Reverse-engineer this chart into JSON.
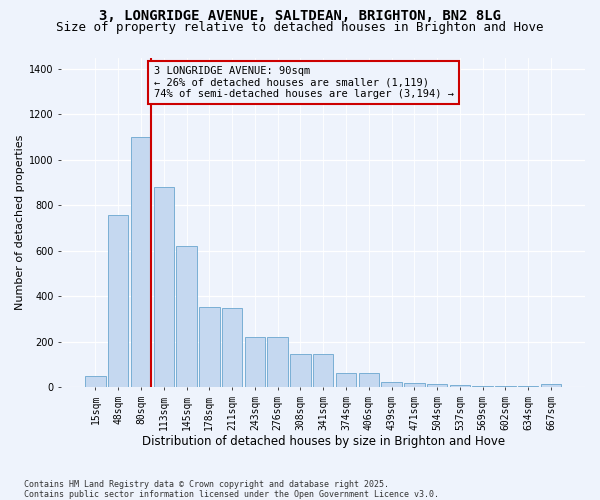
{
  "title": "3, LONGRIDGE AVENUE, SALTDEAN, BRIGHTON, BN2 8LG",
  "subtitle": "Size of property relative to detached houses in Brighton and Hove",
  "xlabel": "Distribution of detached houses by size in Brighton and Hove",
  "ylabel": "Number of detached properties",
  "categories": [
    "15sqm",
    "48sqm",
    "80sqm",
    "113sqm",
    "145sqm",
    "178sqm",
    "211sqm",
    "243sqm",
    "276sqm",
    "308sqm",
    "341sqm",
    "374sqm",
    "406sqm",
    "439sqm",
    "471sqm",
    "504sqm",
    "537sqm",
    "569sqm",
    "602sqm",
    "634sqm",
    "667sqm"
  ],
  "bar_heights": [
    50,
    760,
    1100,
    880,
    620,
    355,
    350,
    220,
    220,
    145,
    145,
    65,
    65,
    25,
    20,
    15,
    10,
    5,
    5,
    5,
    15
  ],
  "bar_color": "#c5d8f0",
  "bar_edge_color": "#7aafd4",
  "vline_index": 2,
  "vline_color": "#cc0000",
  "annotation_text": "3 LONGRIDGE AVENUE: 90sqm\n← 26% of detached houses are smaller (1,119)\n74% of semi-detached houses are larger (3,194) →",
  "annotation_box_facecolor": "#eef3fc",
  "annotation_box_edgecolor": "#cc0000",
  "background_color": "#eef3fc",
  "ylim_max": 1450,
  "yticks": [
    0,
    200,
    400,
    600,
    800,
    1000,
    1200,
    1400
  ],
  "footer": "Contains HM Land Registry data © Crown copyright and database right 2025.\nContains public sector information licensed under the Open Government Licence v3.0.",
  "title_fontsize": 10,
  "subtitle_fontsize": 9,
  "xlabel_fontsize": 8.5,
  "ylabel_fontsize": 8,
  "tick_fontsize": 7,
  "annot_fontsize": 7.5,
  "footer_fontsize": 6
}
